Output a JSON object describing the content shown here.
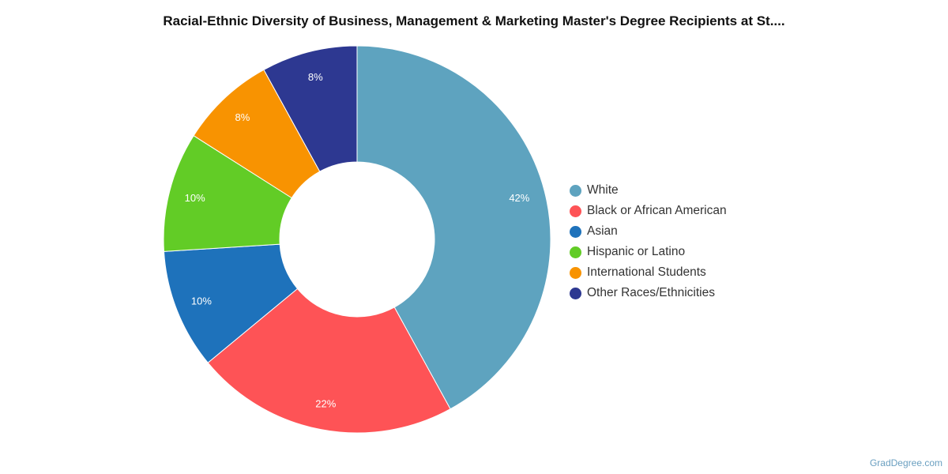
{
  "title": "Racial-Ethnic Diversity of Business, Management & Marketing Master's Degree Recipients at St....",
  "watermark": "GradDegree.com",
  "chart_data": {
    "type": "pie",
    "donut": true,
    "title": "Racial-Ethnic Diversity of Business, Management & Marketing Master's Degree Recipients at St....",
    "legend_position": "right",
    "categories": [
      "White",
      "Black or African American",
      "Asian",
      "Hispanic or Latino",
      "International Students",
      "Other Races/Ethnicities"
    ],
    "values": [
      42,
      22,
      10,
      10,
      8,
      8
    ],
    "labels": [
      "42%",
      "22%",
      "10%",
      "10%",
      "8%",
      "8%"
    ],
    "colors": [
      "#5ea3bf",
      "#fe5356",
      "#1e72bb",
      "#62cc26",
      "#f89301",
      "#2d3891"
    ]
  }
}
